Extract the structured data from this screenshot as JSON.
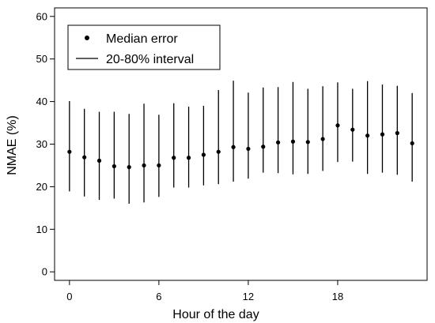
{
  "chart_data": {
    "type": "scatter",
    "xlabel": "Hour of the day",
    "ylabel": "NMAE (%)",
    "xlim": [
      -1,
      24
    ],
    "ylim": [
      -2,
      62
    ],
    "xticks": [
      0,
      6,
      12,
      18
    ],
    "yticks": [
      0,
      10,
      20,
      30,
      40,
      50,
      60
    ],
    "xtick_labels": [
      "0",
      "6",
      "12",
      "18"
    ],
    "ytick_labels": [
      "0",
      "10",
      "20",
      "30",
      "40",
      "50",
      "60"
    ],
    "grid": false,
    "legend": {
      "placement": "top-left",
      "entries": [
        "Median error",
        "20-80% interval"
      ]
    },
    "x": [
      0,
      1,
      2,
      3,
      4,
      5,
      6,
      7,
      8,
      9,
      10,
      11,
      12,
      13,
      14,
      15,
      16,
      17,
      18,
      19,
      20,
      21,
      22,
      23
    ],
    "series": [
      {
        "name": "Median error",
        "values": [
          28.2,
          26.9,
          26.1,
          24.8,
          24.6,
          25.0,
          25.0,
          26.8,
          26.8,
          27.5,
          28.2,
          29.3,
          28.9,
          29.4,
          30.4,
          30.6,
          30.5,
          31.2,
          34.4,
          33.4,
          32.0,
          32.3,
          32.6,
          30.2
        ]
      },
      {
        "name": "20-80% interval",
        "lower": [
          18.9,
          17.7,
          16.9,
          17.2,
          16.0,
          16.3,
          17.6,
          19.8,
          19.8,
          20.3,
          20.6,
          21.2,
          21.9,
          23.3,
          23.2,
          22.9,
          23.0,
          23.7,
          25.8,
          25.9,
          23.0,
          23.3,
          22.8,
          21.2
        ],
        "upper": [
          40.1,
          38.3,
          37.6,
          37.6,
          37.1,
          39.5,
          36.9,
          39.6,
          38.8,
          39.0,
          42.7,
          44.9,
          42.1,
          43.3,
          43.4,
          44.6,
          43.0,
          43.6,
          44.5,
          43.0,
          44.8,
          44.0,
          43.7,
          42.0
        ]
      }
    ]
  }
}
